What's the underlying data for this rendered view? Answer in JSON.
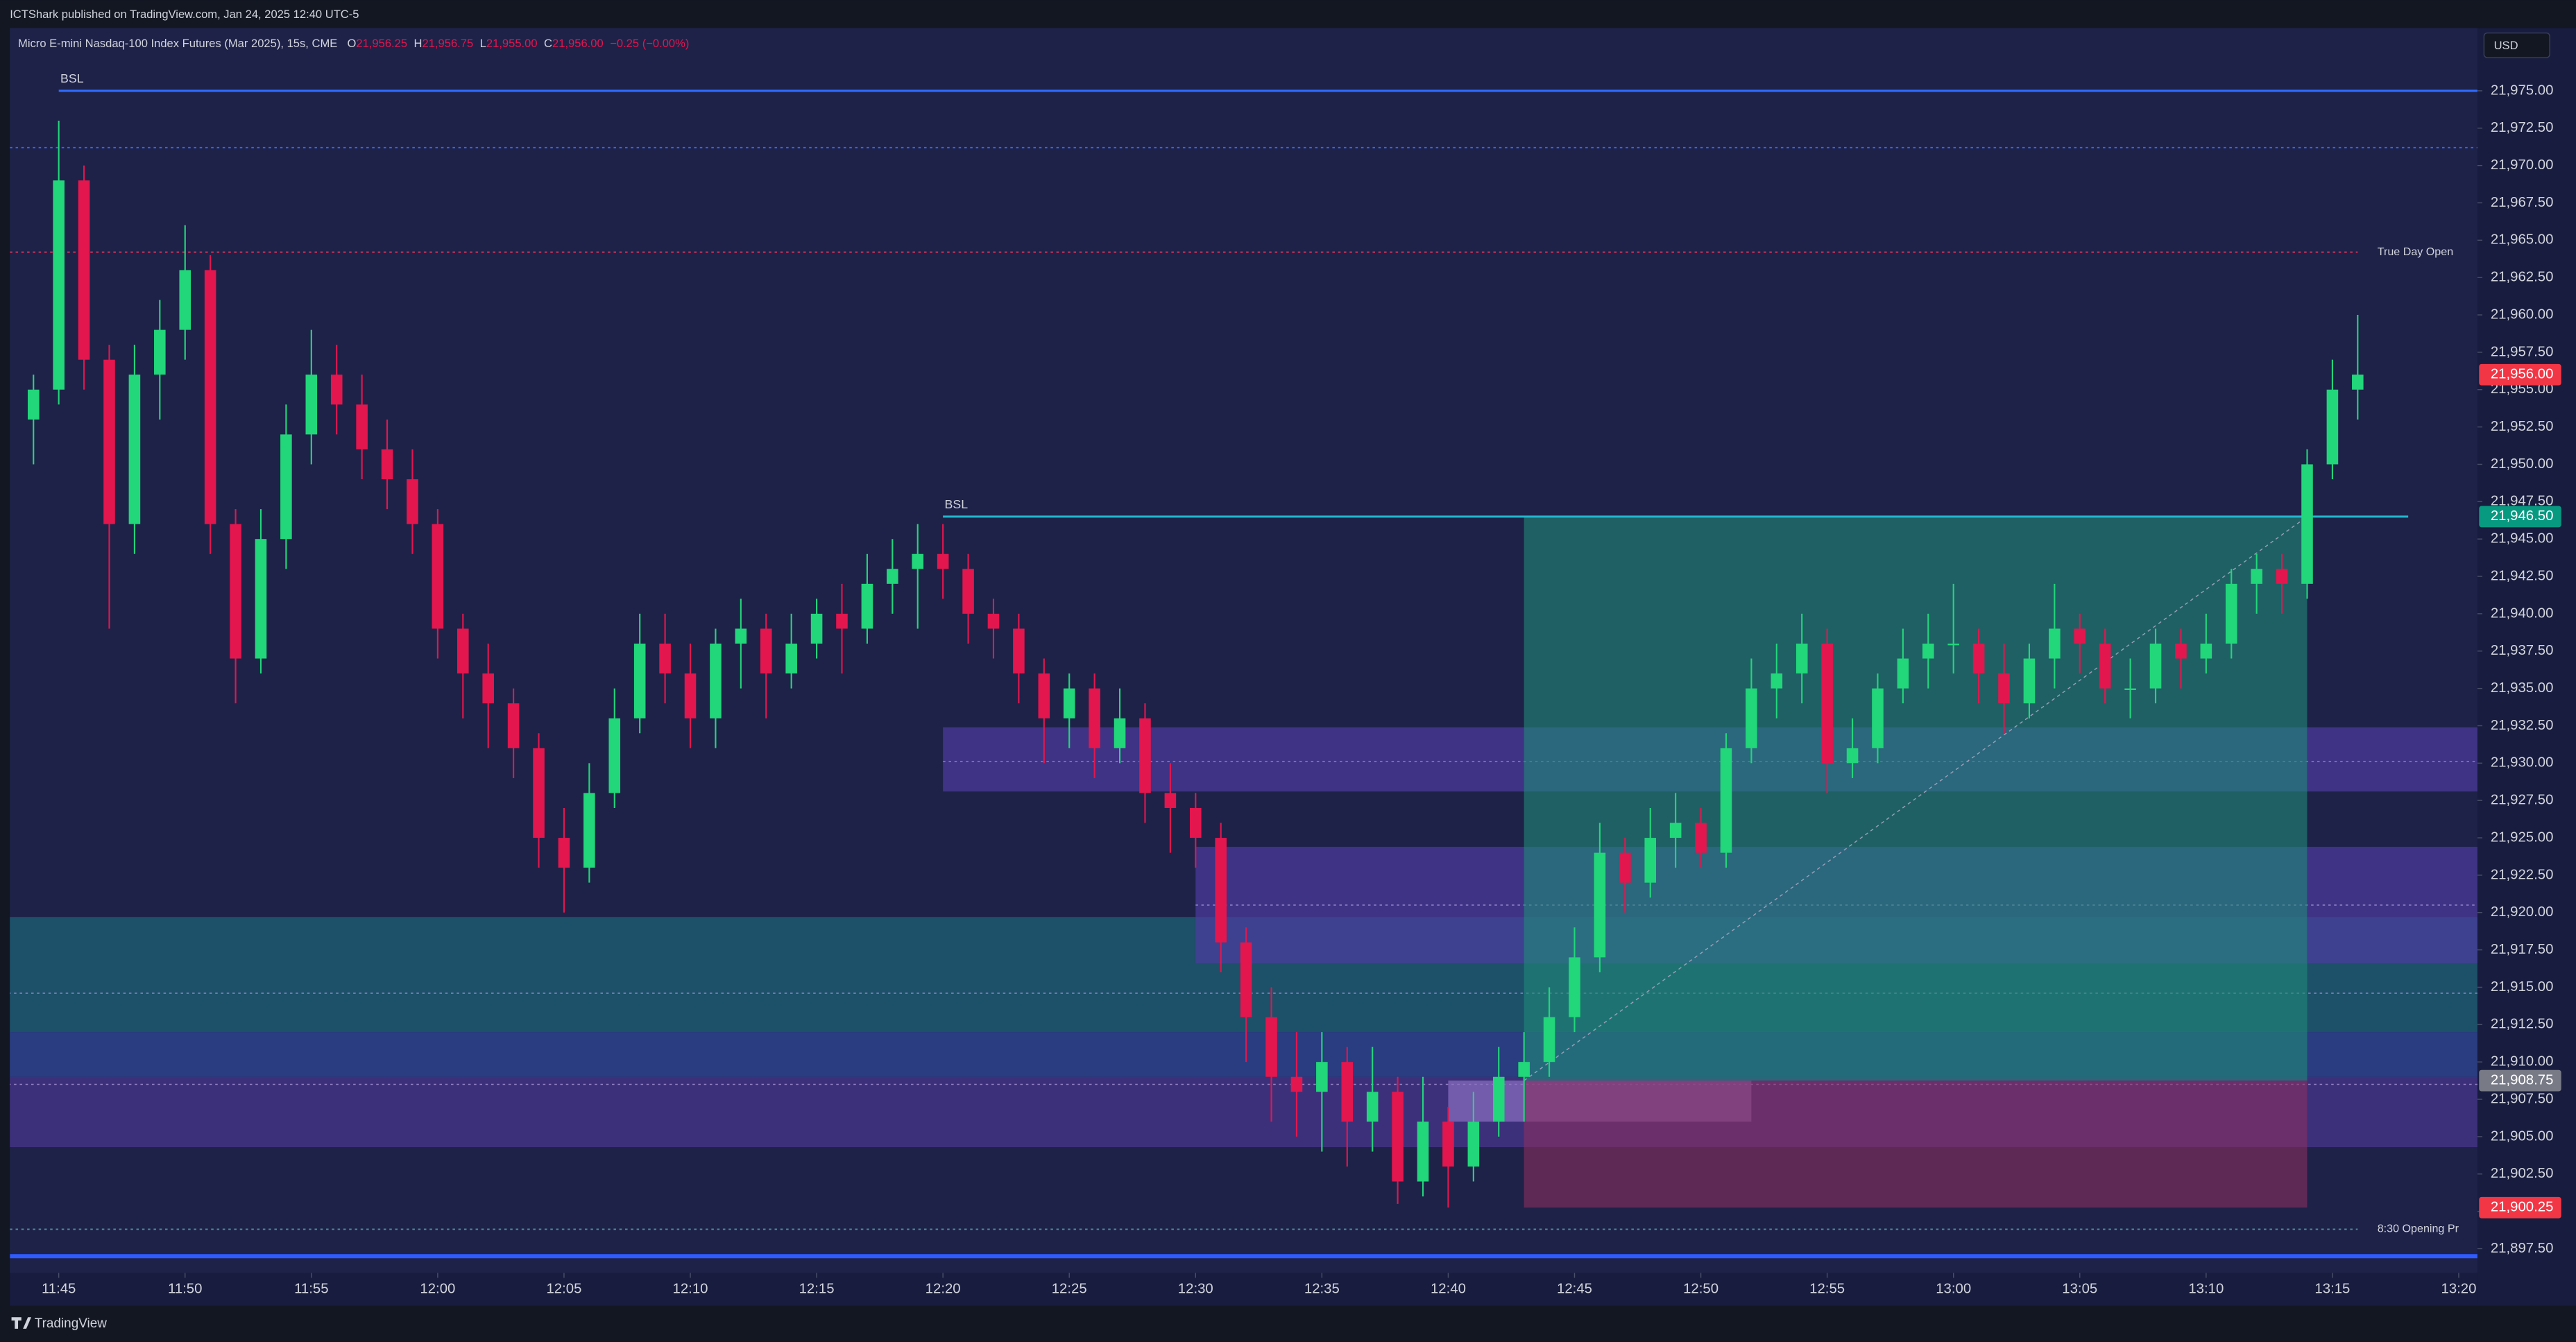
{
  "header": {
    "publisher": "ICTShark published on TradingView.com, Jan 24, 2025 12:40 UTC-5",
    "symbol": "Micro E-mini Nasdaq-100 Index Futures (Mar 2025), 15s, CME",
    "ohlc": [
      {
        "key": "O",
        "value": "21,956.25"
      },
      {
        "key": "H",
        "value": "21,956.75"
      },
      {
        "key": "L",
        "value": "21,955.00"
      },
      {
        "key": "C",
        "value": "21,956.00"
      }
    ],
    "change": "−0.25 (−0.00%)"
  },
  "chart_data": {
    "type": "candlestick",
    "currency": "USD",
    "up_color": "#22d67a",
    "down_color": "#e3164e",
    "x": [
      "11:44",
      "11:45",
      "11:46",
      "11:47",
      "11:48",
      "11:49",
      "11:50",
      "11:51",
      "11:52",
      "11:53",
      "11:54",
      "11:55",
      "11:56",
      "11:57",
      "11:58",
      "11:59",
      "12:00",
      "12:01",
      "12:02",
      "12:03",
      "12:04",
      "12:05",
      "12:06",
      "12:07",
      "12:08",
      "12:09",
      "12:10",
      "12:11",
      "12:12",
      "12:13",
      "12:14",
      "12:15",
      "12:16",
      "12:17",
      "12:18",
      "12:19",
      "12:20",
      "12:21",
      "12:22",
      "12:23",
      "12:24",
      "12:25",
      "12:26",
      "12:27",
      "12:28",
      "12:29",
      "12:30",
      "12:31",
      "12:32",
      "12:33",
      "12:34",
      "12:35",
      "12:36",
      "12:37",
      "12:38",
      "12:39",
      "12:40",
      "12:41",
      "12:42",
      "12:43",
      "12:44",
      "12:45",
      "12:46",
      "12:47",
      "12:48",
      "12:49",
      "12:50",
      "12:51",
      "12:52",
      "12:53",
      "12:54",
      "12:55",
      "12:56",
      "12:57",
      "12:58",
      "12:59",
      "13:00",
      "13:01",
      "13:02",
      "13:03",
      "13:04",
      "13:05",
      "13:06",
      "13:07",
      "13:08",
      "13:09",
      "13:10",
      "13:11",
      "13:12",
      "13:13",
      "13:14",
      "13:15",
      "13:16"
    ],
    "open": [
      21953,
      21955,
      21969,
      21957,
      21946,
      21956,
      21959,
      21963,
      21946,
      21937,
      21945,
      21952,
      21956,
      21954,
      21951,
      21949,
      21946,
      21939,
      21936,
      21934,
      21931,
      21925,
      21923,
      21928,
      21933,
      21938,
      21936,
      21933,
      21938,
      21939,
      21936,
      21938,
      21940,
      21939,
      21942,
      21943,
      21944,
      21943,
      21940,
      21939,
      21936,
      21933,
      21935,
      21931,
      21933,
      21928,
      21927,
      21925,
      21918,
      21913,
      21909,
      21908,
      21910,
      21906,
      21908,
      21902,
      21906,
      21903,
      21906,
      21909,
      21910,
      21913,
      21917,
      21924,
      21922,
      21925,
      21926,
      21924,
      21931,
      21935,
      21936,
      21938,
      21930,
      21931,
      21935,
      21937,
      21938,
      21938,
      21936,
      21934,
      21937,
      21939,
      21938,
      21935,
      21935,
      21938,
      21937,
      21938,
      21942,
      21943,
      21942,
      21950,
      21955
    ],
    "high": [
      21956,
      21973,
      21970,
      21958,
      21958,
      21961,
      21966,
      21964,
      21947,
      21947,
      21954,
      21959,
      21958,
      21956,
      21953,
      21951,
      21947,
      21940,
      21938,
      21935,
      21932,
      21927,
      21930,
      21935,
      21940,
      21940,
      21938,
      21939,
      21941,
      21940,
      21940,
      21941,
      21942,
      21944,
      21945,
      21946,
      21946,
      21944,
      21941,
      21940,
      21937,
      21936,
      21936,
      21935,
      21934,
      21930,
      21928,
      21926,
      21919,
      21915,
      21912,
      21912,
      21911,
      21911,
      21909,
      21909,
      21907,
      21908,
      21911,
      21912,
      21915,
      21919,
      21926,
      21925,
      21927,
      21928,
      21927,
      21932,
      21937,
      21938,
      21940,
      21939,
      21933,
      21936,
      21939,
      21940,
      21942,
      21939,
      21938,
      21938,
      21942,
      21940,
      21939,
      21937,
      21939,
      21939,
      21940,
      21943,
      21944,
      21944,
      21951,
      21957,
      21960
    ],
    "low": [
      21950,
      21954,
      21955,
      21939,
      21944,
      21953,
      21957,
      21944,
      21934,
      21936,
      21943,
      21950,
      21952,
      21949,
      21947,
      21944,
      21937,
      21933,
      21931,
      21929,
      21923,
      21920,
      21922,
      21927,
      21932,
      21934,
      21931,
      21931,
      21935,
      21933,
      21935,
      21937,
      21936,
      21938,
      21940,
      21939,
      21941,
      21938,
      21937,
      21934,
      21930,
      21931,
      21929,
      21930,
      21926,
      21924,
      21923,
      21916,
      21910,
      21906,
      21905,
      21904,
      21903,
      21904,
      21900.5,
      21901,
      21900.25,
      21902,
      21905,
      21906,
      21909,
      21912,
      21916,
      21920,
      21921,
      21923,
      21923,
      21923,
      21930,
      21933,
      21934,
      21928,
      21929,
      21930,
      21934,
      21935,
      21936,
      21934,
      21932,
      21933,
      21935,
      21936,
      21934,
      21933,
      21934,
      21935,
      21936,
      21937,
      21940,
      21940,
      21941,
      21949,
      21953
    ],
    "close": [
      21955,
      21969,
      21957,
      21946,
      21956,
      21959,
      21963,
      21946,
      21937,
      21945,
      21952,
      21956,
      21954,
      21951,
      21949,
      21946,
      21939,
      21936,
      21934,
      21931,
      21925,
      21923,
      21928,
      21933,
      21938,
      21936,
      21933,
      21938,
      21939,
      21936,
      21938,
      21940,
      21939,
      21942,
      21943,
      21944,
      21943,
      21940,
      21939,
      21936,
      21933,
      21935,
      21931,
      21933,
      21928,
      21927,
      21925,
      21918,
      21913,
      21909,
      21908,
      21910,
      21906,
      21908,
      21902,
      21906,
      21903,
      21906,
      21909,
      21910,
      21913,
      21917,
      21924,
      21922,
      21925,
      21926,
      21924,
      21931,
      21935,
      21936,
      21938,
      21930,
      21931,
      21935,
      21937,
      21938,
      21938,
      21936,
      21934,
      21937,
      21939,
      21938,
      21935,
      21935,
      21938,
      21937,
      21938,
      21942,
      21943,
      21942,
      21950,
      21955,
      21956
    ],
    "xlim": [
      "11:43",
      "13:21"
    ],
    "xticks": [
      "11:45",
      "11:50",
      "11:55",
      "12:00",
      "12:05",
      "12:10",
      "12:15",
      "12:20",
      "12:25",
      "12:30",
      "12:35",
      "12:40",
      "12:45",
      "12:50",
      "12:55",
      "13:00",
      "13:05",
      "13:10",
      "13:15",
      "13:20"
    ],
    "ylim": [
      21896.1,
      21979.2
    ],
    "yticks": [
      {
        "value": 21975,
        "label": "21,975.00"
      },
      {
        "value": 21972.5,
        "label": "21,972.50"
      },
      {
        "value": 21970,
        "label": "21,970.00"
      },
      {
        "value": 21967.5,
        "label": "21,967.50"
      },
      {
        "value": 21965,
        "label": "21,965.00"
      },
      {
        "value": 21962.5,
        "label": "21,962.50"
      },
      {
        "value": 21960,
        "label": "21,960.00"
      },
      {
        "value": 21957.5,
        "label": "21,957.50"
      },
      {
        "value": 21955,
        "label": "21,955.00"
      },
      {
        "value": 21952.5,
        "label": "21,952.50"
      },
      {
        "value": 21950,
        "label": "21,950.00"
      },
      {
        "value": 21947.5,
        "label": "21,947.50"
      },
      {
        "value": 21945,
        "label": "21,945.00"
      },
      {
        "value": 21942.5,
        "label": "21,942.50"
      },
      {
        "value": 21940,
        "label": "21,940.00"
      },
      {
        "value": 21937.5,
        "label": "21,937.50"
      },
      {
        "value": 21935,
        "label": "21,935.00"
      },
      {
        "value": 21932.5,
        "label": "21,932.50"
      },
      {
        "value": 21930,
        "label": "21,930.00"
      },
      {
        "value": 21927.5,
        "label": "21,927.50"
      },
      {
        "value": 21925,
        "label": "21,925.00"
      },
      {
        "value": 21922.5,
        "label": "21,922.50"
      },
      {
        "value": 21920,
        "label": "21,920.00"
      },
      {
        "value": 21917.5,
        "label": "21,917.50"
      },
      {
        "value": 21915,
        "label": "21,915.00"
      },
      {
        "value": 21912.5,
        "label": "21,912.50"
      },
      {
        "value": 21910,
        "label": "21,910.00"
      },
      {
        "value": 21907.5,
        "label": "21,907.50"
      },
      {
        "value": 21905,
        "label": "21,905.00"
      },
      {
        "value": 21902.5,
        "label": "21,902.50"
      },
      {
        "value": 21900,
        "label": "21,900.00"
      },
      {
        "value": 21897.5,
        "label": "21,897.50"
      }
    ],
    "zones": [
      {
        "from": 21912.0,
        "to": 21919.7,
        "mid": 21914.6,
        "start": "11:43",
        "color": "#1d6478"
      },
      {
        "from": 21909.0,
        "to": 21912.0,
        "mid": null,
        "start": "11:43",
        "color": "#2d4898"
      },
      {
        "from": 21904.3,
        "to": 21909.0,
        "mid": 21908.5,
        "start": "11:43",
        "color": "#4a3690"
      },
      {
        "from": 21928.1,
        "to": 21932.4,
        "mid": 21930.1,
        "start": "12:20",
        "color": "#4b3aa0"
      },
      {
        "from": 21916.6,
        "to": 21924.4,
        "mid": 21920.5,
        "start": "12:30",
        "color": "#4b3aa0"
      },
      {
        "from": 21906.0,
        "to": 21908.75,
        "mid": null,
        "start": "12:40",
        "end": "12:52",
        "color": "#8a6fc0"
      }
    ],
    "position": {
      "entry": 21908.75,
      "target": 21946.5,
      "stop": 21900.25,
      "start": "12:43",
      "end": "13:14",
      "profit_color": "#1f8a78",
      "loss_color": "#8a2e60"
    },
    "levels": [
      {
        "name": "BSL",
        "value": 21975,
        "start": "11:45",
        "color": "#2f6bff",
        "style": "solid"
      },
      {
        "value": 21971.2,
        "color": "#2f6bff",
        "style": "dotted"
      },
      {
        "name": "True Day Open",
        "value": 21964.2,
        "end": "13:16",
        "color": "#e0325a",
        "style": "dotted"
      },
      {
        "name": "BSL",
        "value": 21946.5,
        "start": "12:20",
        "end": "13:18",
        "color": "#22b8cf",
        "style": "solid"
      },
      {
        "name": "8:30 Opening Pr",
        "value": 21898.8,
        "end": "13:16",
        "color": "#4f8f9a",
        "style": "dotted"
      },
      {
        "value": 21897.0,
        "color": "#2f5bff",
        "style": "thick"
      }
    ],
    "price_labels": [
      {
        "value": 21956,
        "label": "21,956.00",
        "color": "#f23645"
      },
      {
        "value": 21946.5,
        "label": "21,946.50",
        "color": "#089981"
      },
      {
        "value": 21908.75,
        "label": "21,908.75",
        "color": "#787b86"
      },
      {
        "value": 21900.25,
        "label": "21,900.25",
        "color": "#f23645"
      }
    ]
  },
  "footer": {
    "brand": "TradingView"
  }
}
